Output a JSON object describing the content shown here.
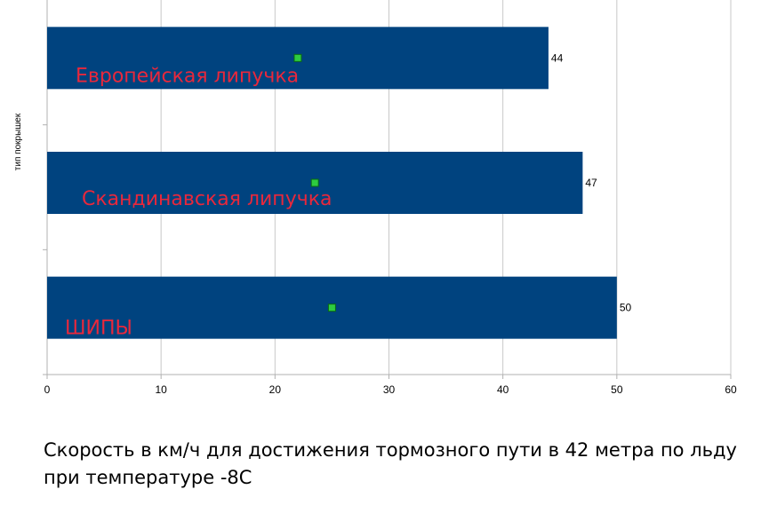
{
  "chart_data": {
    "type": "bar",
    "orientation": "horizontal",
    "categories": [
      "Европейская липучка",
      "Скандинавская липучка",
      "ШИПЫ"
    ],
    "values": [
      44,
      47,
      50
    ],
    "marker_values": [
      22,
      23.5,
      25
    ],
    "data_labels": [
      "44",
      "47",
      "50"
    ],
    "x_ticks": [
      "0",
      "10",
      "20",
      "30",
      "40",
      "50",
      "60"
    ],
    "xlim": [
      0,
      60
    ],
    "ylabel": "тип покрышек",
    "xlabel": "",
    "title": "",
    "grid": true,
    "legend": "none",
    "colors": {
      "bar": "#00437f",
      "marker": "#2ecc40",
      "marker_edge": "#0a6b12",
      "category_text": "#e8283c",
      "grid": "#c8c8c8",
      "axis": "#b0b0b0"
    }
  },
  "caption": "Скорость в км/ч для достижения тормозного пути в 42 метра по льду при температуре -8С"
}
